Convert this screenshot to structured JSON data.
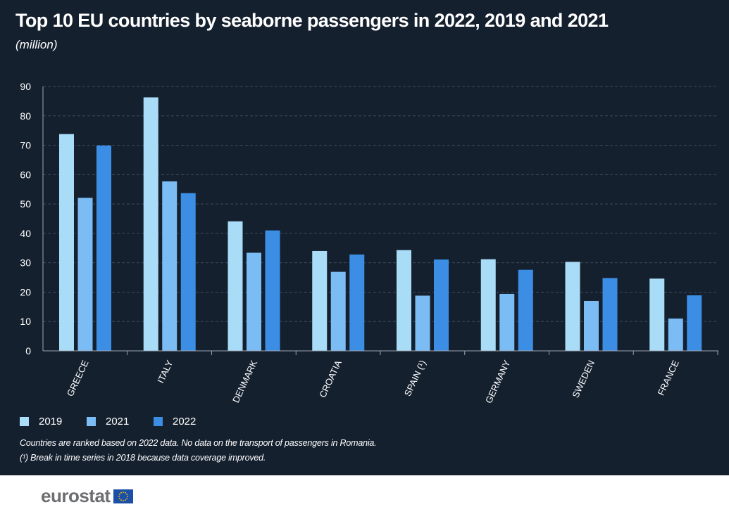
{
  "title": "Top 10 EU countries by seaborne passengers in 2022, 2019 and 2021",
  "subtitle": "(million)",
  "notes": [
    "Countries are ranked based on 2022 data. No data on the transport of passengers in Romania.",
    "(¹) Break in time series in 2018 because data coverage improved."
  ],
  "footer": {
    "logo_text": "eurostat"
  },
  "colors": {
    "background": "#15202f",
    "s2019": "#a9dcf7",
    "s2021": "#7bbcf4",
    "s2022": "#3c8ee4",
    "grid": "#3a4a5c",
    "axis": "#9aa5b1"
  },
  "chart_data": {
    "type": "bar",
    "title": "Top 10 EU countries by seaborne passengers in 2022, 2019 and 2021",
    "subtitle": "(million)",
    "categories": [
      "GREECE",
      "ITALY",
      "DENMARK",
      "CROATIA",
      "SPAIN (¹)",
      "GERMANY",
      "SWEDEN",
      "FRANCE"
    ],
    "series": [
      {
        "name": "2019",
        "color": "#a9dcf7",
        "values": [
          73.8,
          86.3,
          44.1,
          34.0,
          34.3,
          31.2,
          30.3,
          24.6
        ]
      },
      {
        "name": "2021",
        "color": "#7bbcf4",
        "values": [
          52.1,
          57.7,
          33.4,
          26.9,
          18.8,
          19.4,
          17.0,
          11.0
        ]
      },
      {
        "name": "2022",
        "color": "#3c8ee4",
        "values": [
          69.9,
          53.7,
          41.0,
          32.8,
          31.1,
          27.6,
          24.8,
          18.9
        ]
      }
    ],
    "ylim": [
      0,
      90
    ],
    "yticks": [
      0,
      10,
      20,
      30,
      40,
      50,
      60,
      70,
      80,
      90
    ],
    "grid": true,
    "legend": "bottom-left"
  }
}
